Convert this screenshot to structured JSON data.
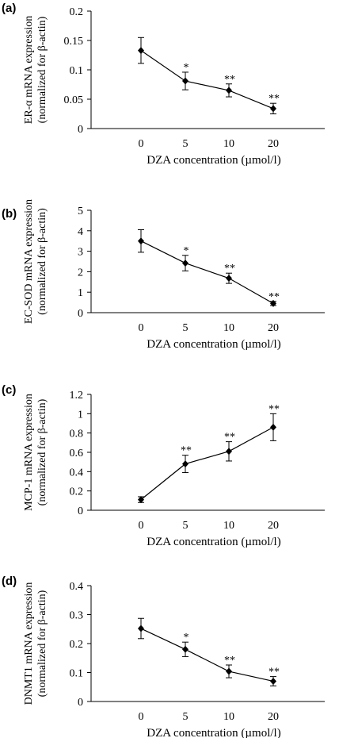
{
  "chart_data": [
    {
      "type": "line",
      "panel_label": "(a)",
      "ylabel_lines": [
        "ER-α mRNA expression",
        "(normalized for β-actin)"
      ],
      "xlabel": "DZA concentration (µmol/l)",
      "categories": [
        "0",
        "5",
        "10",
        "20"
      ],
      "yticks": [
        "0",
        "0.05",
        "0.1",
        "0.15",
        "0.2"
      ],
      "ylim": [
        0,
        0.2
      ],
      "values": [
        0.133,
        0.081,
        0.065,
        0.034
      ],
      "errors": [
        0.022,
        0.015,
        0.011,
        0.009
      ],
      "significance": [
        "",
        "*",
        "**",
        "**"
      ]
    },
    {
      "type": "line",
      "panel_label": "(b)",
      "ylabel_lines": [
        "EC-SOD mRNA expression",
        "(normalized for β-actin)"
      ],
      "xlabel": "DZA concentration (µmol/l)",
      "categories": [
        "0",
        "5",
        "10",
        "20"
      ],
      "yticks": [
        "0",
        "1",
        "2",
        "3",
        "4",
        "5"
      ],
      "ylim": [
        0,
        5
      ],
      "values": [
        3.5,
        2.42,
        1.68,
        0.45
      ],
      "errors": [
        0.55,
        0.38,
        0.25,
        0.1
      ],
      "significance": [
        "",
        "*",
        "**",
        "**"
      ]
    },
    {
      "type": "line",
      "panel_label": "(c)",
      "ylabel_lines": [
        "MCP-1 mRNA expression",
        "(normalized for β-actin)"
      ],
      "xlabel": "DZA concentration (µmol/l)",
      "categories": [
        "0",
        "5",
        "10",
        "20"
      ],
      "yticks": [
        "0",
        "0.2",
        "0.4",
        "0.6",
        "0.8",
        "1",
        "1.2"
      ],
      "ylim": [
        0,
        1.2
      ],
      "values": [
        0.11,
        0.48,
        0.61,
        0.86
      ],
      "errors": [
        0.03,
        0.09,
        0.1,
        0.14
      ],
      "significance": [
        "",
        "**",
        "**",
        "**"
      ]
    },
    {
      "type": "line",
      "panel_label": "(d)",
      "ylabel_lines": [
        "DNMT1 mRNA expression",
        "(normalized for β-actin)"
      ],
      "xlabel": "DZA concentration (µmol/l)",
      "categories": [
        "0",
        "5",
        "10",
        "20"
      ],
      "yticks": [
        "0",
        "0.1",
        "0.2",
        "0.3",
        "0.4"
      ],
      "ylim": [
        0,
        0.4
      ],
      "values": [
        0.252,
        0.18,
        0.104,
        0.07
      ],
      "errors": [
        0.035,
        0.025,
        0.022,
        0.016
      ],
      "significance": [
        "",
        "*",
        "**",
        "**"
      ]
    }
  ]
}
